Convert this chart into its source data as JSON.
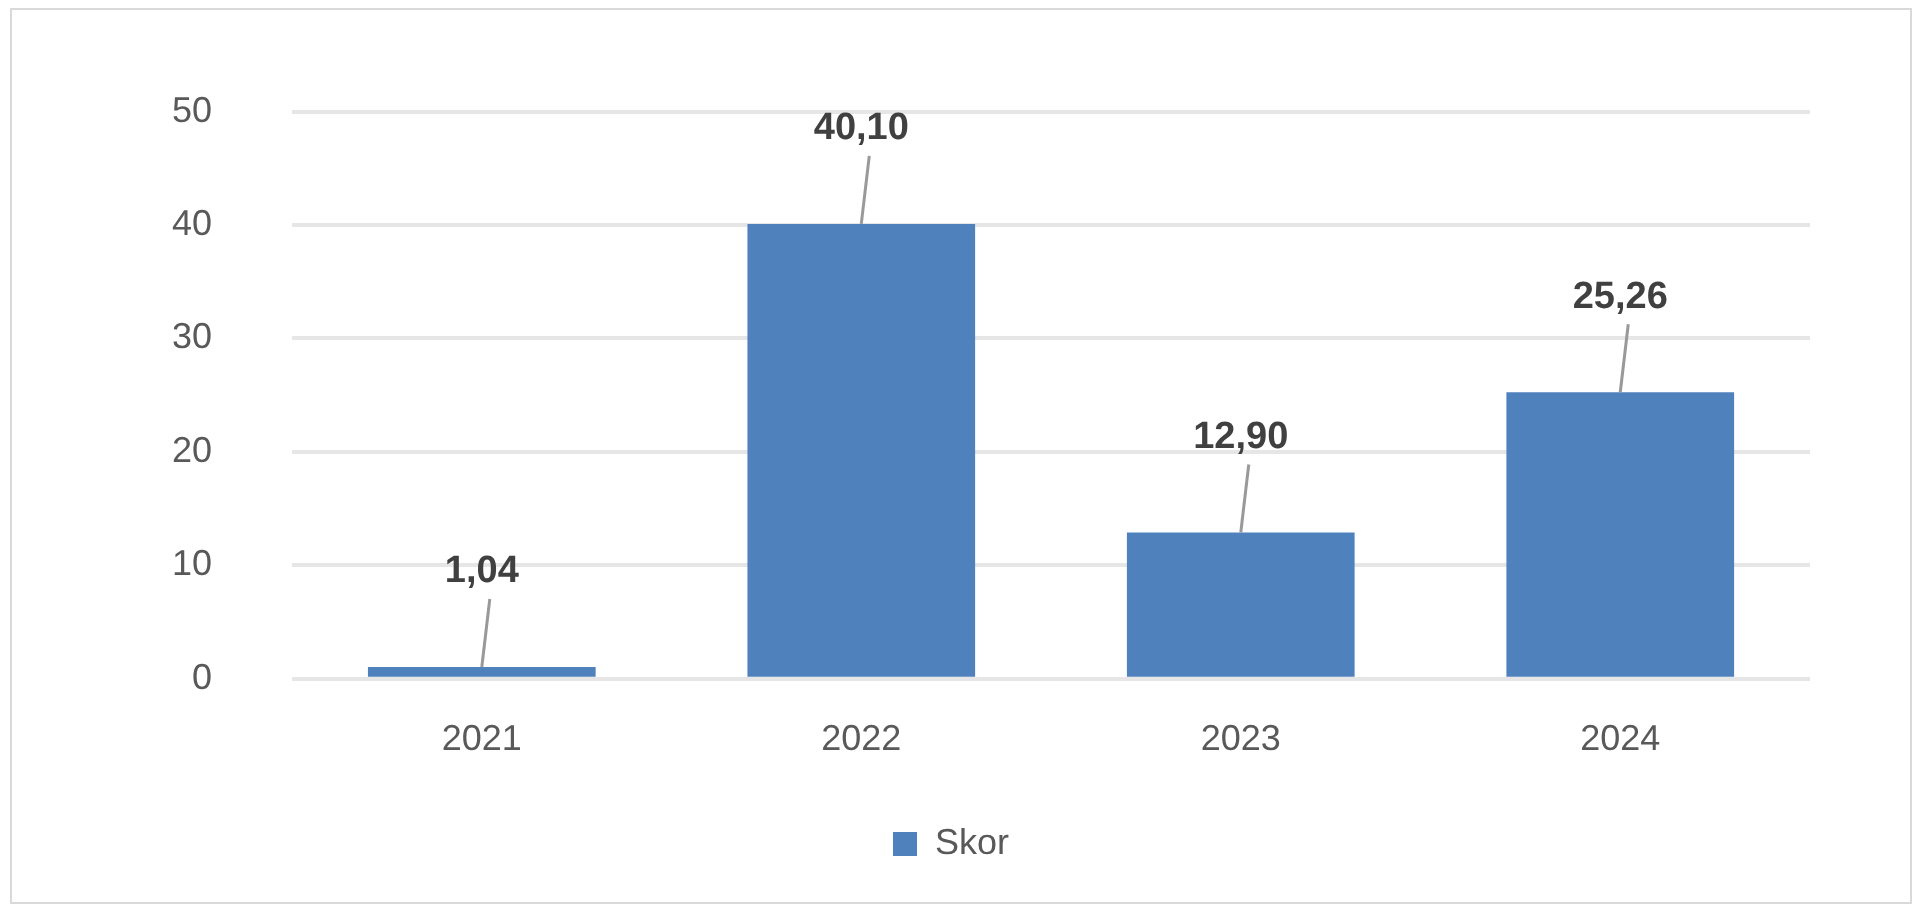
{
  "chart_data": {
    "type": "bar",
    "categories": [
      "2021",
      "2022",
      "2023",
      "2024"
    ],
    "series": [
      {
        "name": "Skor",
        "color": "#4f81bd",
        "values": [
          1.04,
          40.1,
          12.9,
          25.26
        ],
        "value_labels": [
          "1,04",
          "40,10",
          "12,90",
          "25,26"
        ]
      }
    ],
    "ylim": [
      0,
      50
    ],
    "yticks": [
      0,
      10,
      20,
      30,
      40,
      50
    ],
    "grid": "y",
    "legend": "bottom"
  }
}
